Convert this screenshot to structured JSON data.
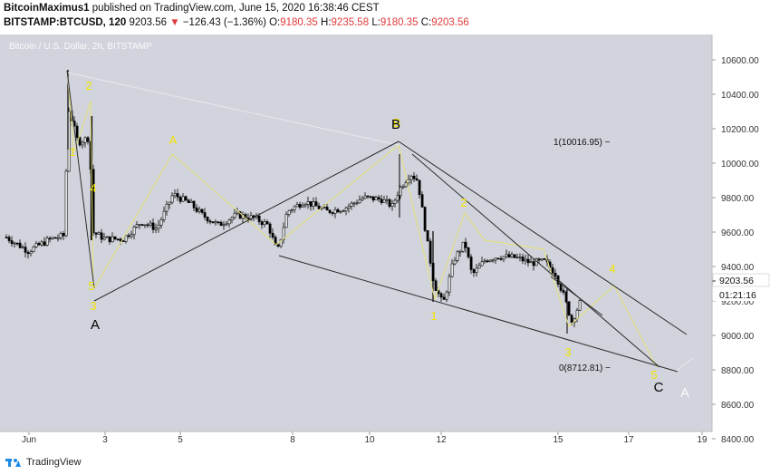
{
  "header": {
    "author": "BitcoinMaximus1",
    "published": "published on TradingView.com, June 15, 2020 16:38:46 CEST",
    "symbol": "BITSTAMP:BTCUSD, 120",
    "last": "9203.56",
    "change": "−126.43 (−1.36%)",
    "open_label": "O:",
    "open": "9180.35",
    "high_label": "H:",
    "high": "9235.58",
    "low_label": "L:",
    "low": "9180.35",
    "close_label": "C:",
    "close": "9203.56"
  },
  "watermark": "Bitcoin / U.S. Dollar, 2h, BITSTAMP",
  "price_axis": {
    "ticks": [
      "10600.00",
      "10400.00",
      "10200.00",
      "10000.00",
      "9800.00",
      "9600.00",
      "9400.00",
      "9200.00",
      "9000.00",
      "8800.00",
      "8600.00",
      "8400.00"
    ],
    "last_price": "9203.56",
    "countdown": "01:21:16"
  },
  "time_axis": {
    "ticks": [
      "Jun",
      "3",
      "5",
      "8",
      "10",
      "12",
      "15",
      "17",
      "19"
    ]
  },
  "annotations": {
    "fib_1": "1(10016.95)",
    "fib_0": "0(8712.81)"
  },
  "wave_labels_yellow": [
    "2",
    "1",
    "4",
    "5",
    "3",
    "B",
    "A",
    "2",
    "1",
    "3",
    "4",
    "5"
  ],
  "wave_labels_black": [
    "A",
    "B",
    "C"
  ],
  "wave_labels_white": [
    "A"
  ],
  "footer": {
    "brand": "TradingView"
  },
  "colors": {
    "plot_bg": "#d1d4dc",
    "wave_yellow": "#f5e500",
    "candle": "#000000",
    "line": "#222222"
  }
}
